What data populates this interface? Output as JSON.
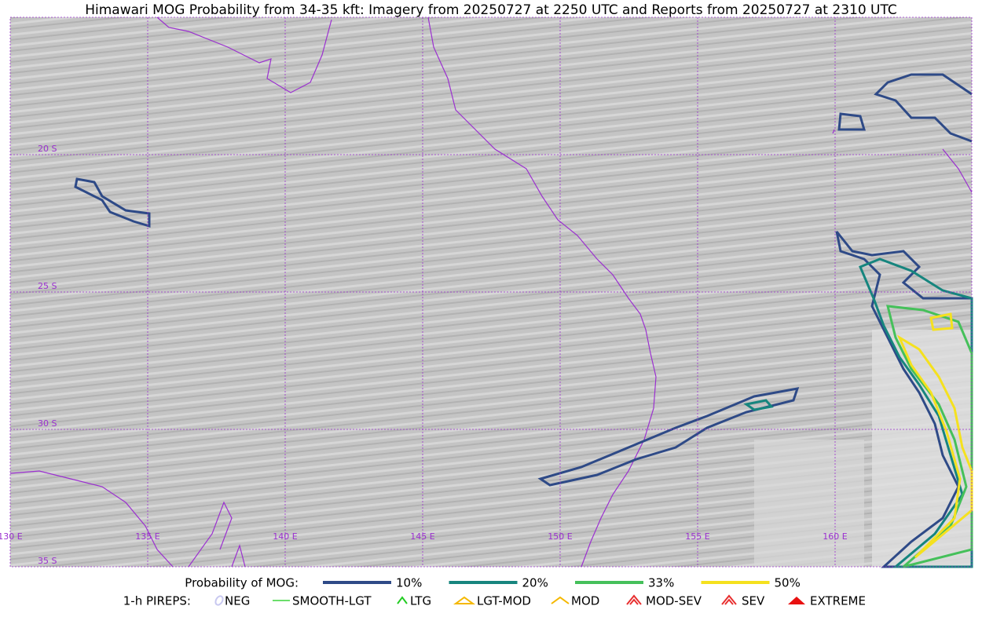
{
  "title": "Himawari MOG Probability from 34-35 kft: Imagery from 20250727 at 2250 UTC and Reports from 20250727 at 2310 UTC",
  "map": {
    "lat_labels": [
      "20 S",
      "25 S",
      "30 S",
      "35 S"
    ],
    "lon_labels": [
      "130 E",
      "135 E",
      "140 E",
      "145 E",
      "150 E",
      "155 E",
      "160 E"
    ],
    "grid_color": "#9b30d0",
    "coast_color": "#9b30d0"
  },
  "legend": {
    "probability": {
      "label": "Probability of MOG:",
      "items": [
        {
          "label": "10%",
          "color": "#2e4a87"
        },
        {
          "label": "20%",
          "color": "#16857e"
        },
        {
          "label": "33%",
          "color": "#45c05a"
        },
        {
          "label": "50%",
          "color": "#f5e11e"
        }
      ]
    },
    "pireps": {
      "label": "1-h PIREPS:",
      "items": [
        {
          "label": "NEG",
          "color": "#c8c8f0"
        },
        {
          "label": "SMOOTH-LGT",
          "color": "#3ad43a"
        },
        {
          "label": "LTG",
          "color": "#22cc22"
        },
        {
          "label": "LGT-MOD",
          "color": "#f5b800"
        },
        {
          "label": "MOD",
          "color": "#f5b800"
        },
        {
          "label": "MOD-SEV",
          "color": "#e83030"
        },
        {
          "label": "SEV",
          "color": "#e83030"
        },
        {
          "label": "EXTREME",
          "color": "#e81010"
        }
      ]
    }
  }
}
